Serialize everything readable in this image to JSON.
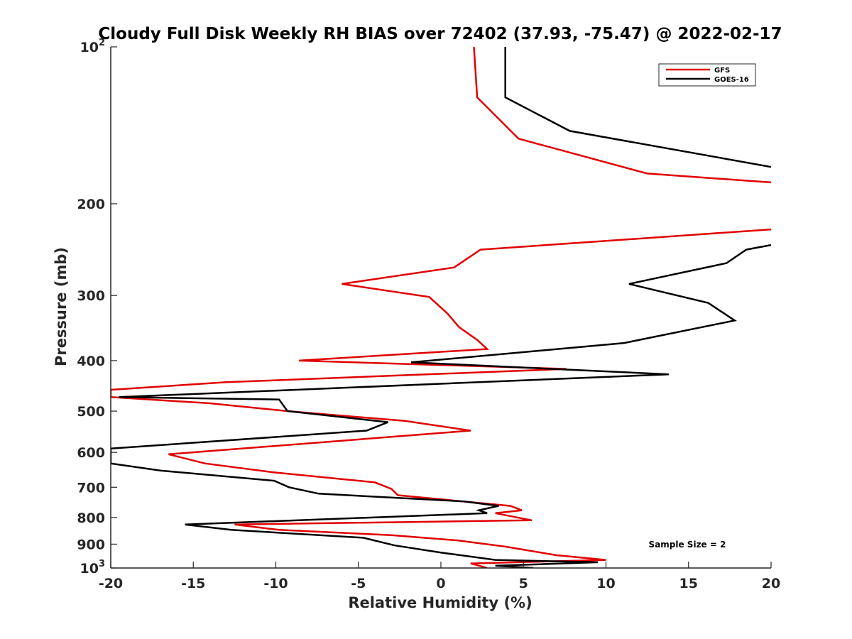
{
  "chart_data": {
    "type": "line",
    "title": "Cloudy Full Disk Weekly RH BIAS over 72402 (37.93, -75.47) @ 2022-02-17",
    "xlabel": "Relative Humidity (%)",
    "ylabel": "Pressure (mb)",
    "xlim": [
      -20,
      20
    ],
    "ylim": [
      100,
      1000
    ],
    "yscale": "log",
    "y_reversed": true,
    "grid": false,
    "legend_position": "top-right",
    "x_ticks": [
      -20,
      -15,
      -10,
      -5,
      0,
      5,
      10,
      15,
      20
    ],
    "x_tick_labels": [
      "-20",
      "-15",
      "-10",
      "-5",
      "0",
      "5",
      "10",
      "15",
      "20"
    ],
    "y_ticks": [
      100,
      200,
      300,
      400,
      500,
      600,
      700,
      800,
      900,
      1000
    ],
    "y_tick_labels": [
      {
        "base": "10",
        "exp": "2"
      },
      {
        "base": "200",
        "exp": ""
      },
      {
        "base": "300",
        "exp": ""
      },
      {
        "base": "400",
        "exp": ""
      },
      {
        "base": "500",
        "exp": ""
      },
      {
        "base": "600",
        "exp": ""
      },
      {
        "base": "700",
        "exp": ""
      },
      {
        "base": "800",
        "exp": ""
      },
      {
        "base": "900",
        "exp": ""
      },
      {
        "base": "10",
        "exp": "3"
      }
    ],
    "annotation": "Sample Size = 2",
    "series": [
      {
        "name": "GFS",
        "color": "#e00000",
        "points": [
          [
            2.0,
            100
          ],
          [
            2.2,
            125
          ],
          [
            4.7,
            150
          ],
          [
            12.5,
            175
          ],
          [
            20,
            182
          ],
          [
            null,
            null
          ],
          [
            20,
            224
          ],
          [
            2.4,
            245
          ],
          [
            0.8,
            265
          ],
          [
            -6.0,
            285
          ],
          [
            -0.7,
            302
          ],
          [
            0.4,
            325
          ],
          [
            1.1,
            345
          ],
          [
            2.2,
            365
          ],
          [
            2.8,
            380
          ],
          [
            -8.6,
            400
          ],
          [
            7.6,
            415
          ],
          [
            -13.0,
            440
          ],
          [
            -20,
            455
          ],
          [
            -20,
            470
          ],
          [
            -14.0,
            483
          ],
          [
            -9.3,
            500
          ],
          [
            -2.2,
            522
          ],
          [
            1.8,
            545
          ],
          [
            -4.5,
            565
          ],
          [
            -16.5,
            605
          ],
          [
            -14.3,
            630
          ],
          [
            -10.2,
            655
          ],
          [
            -4.0,
            685
          ],
          [
            -3.0,
            705
          ],
          [
            -2.6,
            725
          ],
          [
            4.2,
            760
          ],
          [
            4.9,
            775
          ],
          [
            3.3,
            785
          ],
          [
            5.5,
            810
          ],
          [
            -12.5,
            825
          ],
          [
            -9.8,
            845
          ],
          [
            -3.0,
            865
          ],
          [
            1.0,
            885
          ],
          [
            3.9,
            910
          ],
          [
            7.0,
            945
          ],
          [
            10.0,
            965
          ],
          [
            1.8,
            980
          ],
          [
            2.8,
            1000
          ]
        ]
      },
      {
        "name": "GOES-16",
        "color": "#000000",
        "points": [
          [
            3.9,
            100
          ],
          [
            3.9,
            125
          ],
          [
            7.8,
            145
          ],
          [
            20,
            170
          ],
          [
            null,
            null
          ],
          [
            20,
            240
          ],
          [
            18.5,
            245
          ],
          [
            17.3,
            260
          ],
          [
            11.4,
            285
          ],
          [
            16.2,
            310
          ],
          [
            17.8,
            335
          ],
          [
            11.1,
            370
          ],
          [
            -1.8,
            403
          ],
          [
            13.8,
            425
          ],
          [
            -19.5,
            470
          ],
          [
            -9.8,
            475
          ],
          [
            -9.3,
            500
          ],
          [
            -3.2,
            525
          ],
          [
            -4.5,
            545
          ],
          [
            -20,
            590
          ],
          [
            -20,
            630
          ],
          [
            -17.0,
            650
          ],
          [
            -10.1,
            680
          ],
          [
            -9.2,
            700
          ],
          [
            -7.4,
            720
          ],
          [
            1.4,
            745
          ],
          [
            3.5,
            760
          ],
          [
            2.3,
            775
          ],
          [
            2.8,
            785
          ],
          [
            -15.5,
            825
          ],
          [
            -12.7,
            845
          ],
          [
            -4.7,
            875
          ],
          [
            -2.8,
            905
          ],
          [
            0.1,
            935
          ],
          [
            3.3,
            965
          ],
          [
            9.5,
            975
          ],
          [
            3.3,
            990
          ],
          [
            5.6,
            1000
          ]
        ]
      }
    ]
  }
}
